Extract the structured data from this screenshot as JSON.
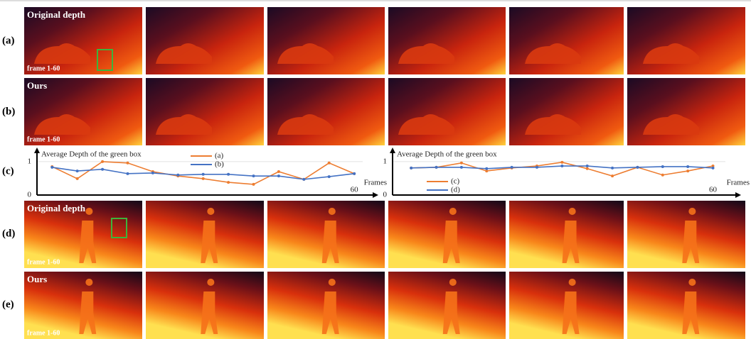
{
  "figure": {
    "row_labels": [
      "(a)",
      "(b)",
      "(c)",
      "(d)",
      "(e)"
    ],
    "image_rows": [
      {
        "title": "Original depth",
        "frames": "frame 1-60"
      },
      {
        "title": "Ours",
        "frames": "frame 1-60"
      },
      {
        "title": "Original depth",
        "frames": "frame 1-60"
      },
      {
        "title": "Ours",
        "frames": "frame 1-60"
      }
    ]
  },
  "chart_data": [
    {
      "type": "line",
      "title": "Average Depth of the green box",
      "x_label": "Frames",
      "x": [
        0,
        5,
        10,
        15,
        20,
        25,
        30,
        35,
        40,
        45,
        50,
        55,
        60
      ],
      "xlim": [
        -3,
        64.5
      ],
      "xticks": [
        60
      ],
      "ylim": [
        0,
        1.38
      ],
      "yticks": [
        0,
        1
      ],
      "grid": true,
      "series": [
        {
          "name": "(a)",
          "color": "#ed7d31",
          "values": [
            0.85,
            0.49,
            1.0,
            0.96,
            0.7,
            0.57,
            0.49,
            0.38,
            0.32,
            0.7,
            0.47,
            0.96,
            0.64
          ]
        },
        {
          "name": "(b)",
          "color": "#4472c4",
          "values": [
            0.83,
            0.72,
            0.77,
            0.64,
            0.66,
            0.6,
            0.62,
            0.62,
            0.57,
            0.57,
            0.47,
            0.55,
            0.64
          ]
        }
      ]
    },
    {
      "type": "line",
      "title": "Average Depth of the green box",
      "x_label": "Frames",
      "x": [
        0,
        5,
        10,
        15,
        20,
        25,
        30,
        35,
        40,
        45,
        50,
        55,
        60
      ],
      "xlim": [
        -3.7,
        65.3
      ],
      "xticks": [
        60
      ],
      "ylim": [
        0,
        1.38
      ],
      "yticks": [
        0,
        1
      ],
      "grid": true,
      "series": [
        {
          "name": "(c)",
          "color": "#ed7d31",
          "values": [
            0.81,
            0.83,
            0.96,
            0.72,
            0.81,
            0.87,
            0.98,
            0.79,
            0.57,
            0.83,
            0.6,
            0.72,
            0.87
          ]
        },
        {
          "name": "(d)",
          "color": "#4472c4",
          "values": [
            0.81,
            0.83,
            0.83,
            0.79,
            0.83,
            0.83,
            0.87,
            0.87,
            0.81,
            0.83,
            0.85,
            0.85,
            0.81
          ]
        }
      ]
    }
  ]
}
